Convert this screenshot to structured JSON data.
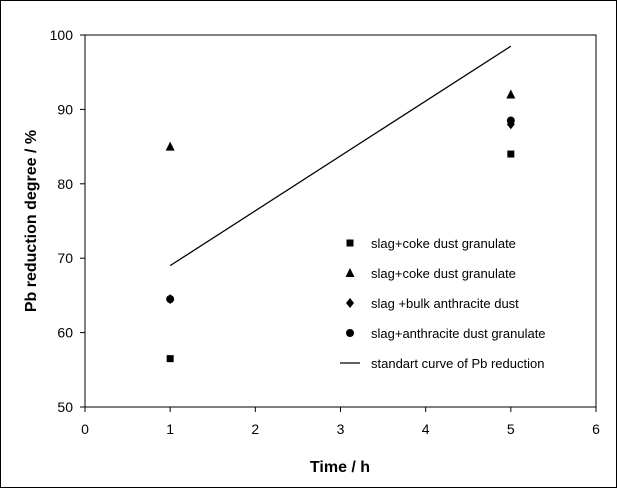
{
  "chart_data": {
    "type": "scatter",
    "xlabel": "Time / h",
    "ylabel": "Pb reduction degree / %",
    "xlim": [
      0,
      6
    ],
    "ylim": [
      50,
      100
    ],
    "xticks": [
      "0",
      "1",
      "2",
      "3",
      "4",
      "5",
      "6"
    ],
    "yticks": [
      "50",
      "60",
      "70",
      "80",
      "90",
      "100"
    ],
    "grid": false,
    "legend_position": "right",
    "series": [
      {
        "name": "slag+coke dust granulate",
        "marker": "square",
        "color": "#000000",
        "points": [
          {
            "x": 1,
            "y": 56.5
          },
          {
            "x": 5,
            "y": 84
          }
        ]
      },
      {
        "name": "slag+coke dust granulate",
        "marker": "triangle",
        "color": "#000000",
        "points": [
          {
            "x": 1,
            "y": 85
          },
          {
            "x": 5,
            "y": 92
          }
        ]
      },
      {
        "name": "slag +bulk anthracite dust",
        "marker": "diamond",
        "color": "#000000",
        "points": [
          {
            "x": 1,
            "y": 64.5
          },
          {
            "x": 5,
            "y": 88
          }
        ]
      },
      {
        "name": "slag+anthracite dust granulate",
        "marker": "circle",
        "color": "#000000",
        "points": [
          {
            "x": 1,
            "y": 64.5
          },
          {
            "x": 5,
            "y": 88.5
          }
        ]
      },
      {
        "name": "standart curve of Pb reduction",
        "marker": "line",
        "color": "#000000",
        "points": [
          {
            "x": 1,
            "y": 69
          },
          {
            "x": 5,
            "y": 98.5
          }
        ]
      }
    ]
  }
}
